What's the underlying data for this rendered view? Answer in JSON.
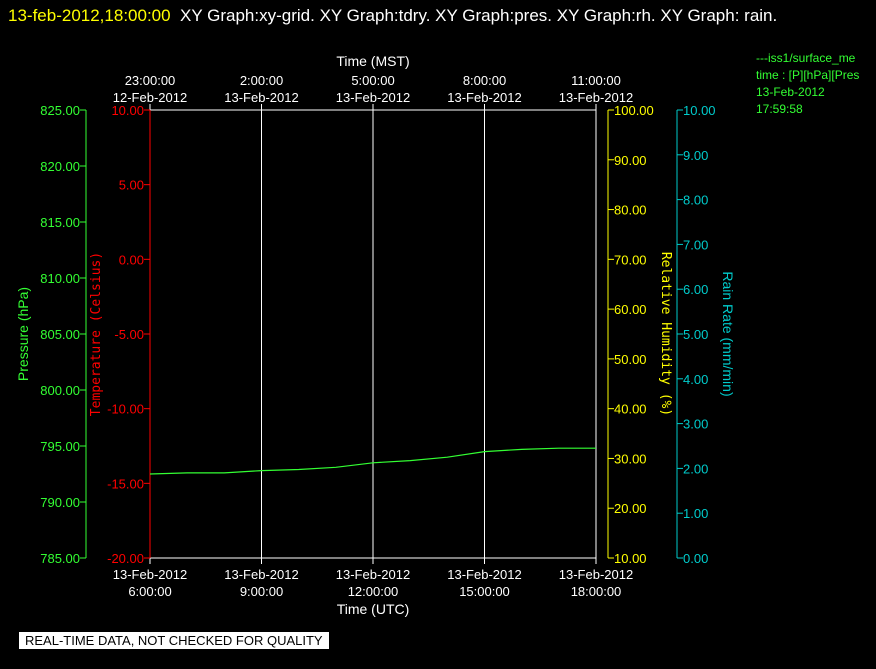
{
  "header": {
    "timestamp": "13-feb-2012,18:00:00",
    "graphs_text": "XY Graph:xy-grid.  XY Graph:tdry.  XY Graph:pres.  XY Graph:rh.  XY Graph: rain."
  },
  "legend": {
    "lines": [
      "---iss1/surface_me",
      "time : [P][hPa][Pres",
      "13-Feb-2012",
      "17:59:58"
    ]
  },
  "notice": "REAL-TIME DATA, NOT CHECKED FOR QUALITY",
  "colors": {
    "pressure": "#33ff33",
    "temperature": "#ff0000",
    "humidity": "#ffff00",
    "rain": "#00cccc",
    "grid": "#ffffff",
    "timestamp": "#ffff00"
  },
  "chart_data": {
    "type": "line",
    "x_bottom": {
      "label": "Time (UTC)",
      "ticks": [
        {
          "date": "13-Feb-2012",
          "time": "6:00:00"
        },
        {
          "date": "13-Feb-2012",
          "time": "9:00:00"
        },
        {
          "date": "13-Feb-2012",
          "time": "12:00:00"
        },
        {
          "date": "13-Feb-2012",
          "time": "15:00:00"
        },
        {
          "date": "13-Feb-2012",
          "time": "18:00:00"
        }
      ]
    },
    "x_top": {
      "label": "Time (MST)",
      "ticks": [
        {
          "time": "23:00:00",
          "date": "12-Feb-2012"
        },
        {
          "time": "2:00:00",
          "date": "13-Feb-2012"
        },
        {
          "time": "5:00:00",
          "date": "13-Feb-2012"
        },
        {
          "time": "8:00:00",
          "date": "13-Feb-2012"
        },
        {
          "time": "11:00:00",
          "date": "13-Feb-2012"
        }
      ]
    },
    "xlim_hours_utc": [
      6,
      18
    ],
    "y_axes": [
      {
        "name": "Pressure (hPa)",
        "color": "#33ff33",
        "ylim": [
          785,
          825
        ],
        "ticks": [
          "825.00",
          "820.00",
          "815.00",
          "810.00",
          "805.00",
          "800.00",
          "795.00",
          "790.00",
          "785.00"
        ]
      },
      {
        "name": "Temperature (Celsius)",
        "color": "#ff0000",
        "ylim": [
          -20,
          10
        ],
        "ticks": [
          "10.00",
          "5.00",
          "0.00",
          "-5.00",
          "-10.00",
          "-15.00",
          "-20.00"
        ]
      },
      {
        "name": "Relative Humidity (%)",
        "color": "#ffff00",
        "ylim": [
          10,
          100
        ],
        "ticks": [
          "100.00",
          "90.00",
          "80.00",
          "70.00",
          "60.00",
          "50.00",
          "40.00",
          "30.00",
          "20.00",
          "10.00"
        ]
      },
      {
        "name": "Rain Rate (mm/min)",
        "color": "#00cccc",
        "ylim": [
          0,
          10
        ],
        "ticks": [
          "10.00",
          "9.00",
          "8.00",
          "7.00",
          "6.00",
          "5.00",
          "4.00",
          "3.00",
          "2.00",
          "1.00",
          "0.00"
        ]
      }
    ],
    "series": [
      {
        "axis": "Pressure (hPa)",
        "color": "#33ff33",
        "x": [
          "6:00",
          "7:00",
          "8:00",
          "9:00",
          "10:00",
          "11:00",
          "12:00",
          "13:00",
          "14:00",
          "15:00",
          "16:00",
          "17:00",
          "18:00"
        ],
        "values": [
          792.5,
          792.6,
          792.6,
          792.8,
          792.9,
          793.1,
          793.5,
          793.7,
          794.0,
          794.5,
          794.7,
          794.8,
          794.8
        ]
      }
    ],
    "grid": true
  }
}
